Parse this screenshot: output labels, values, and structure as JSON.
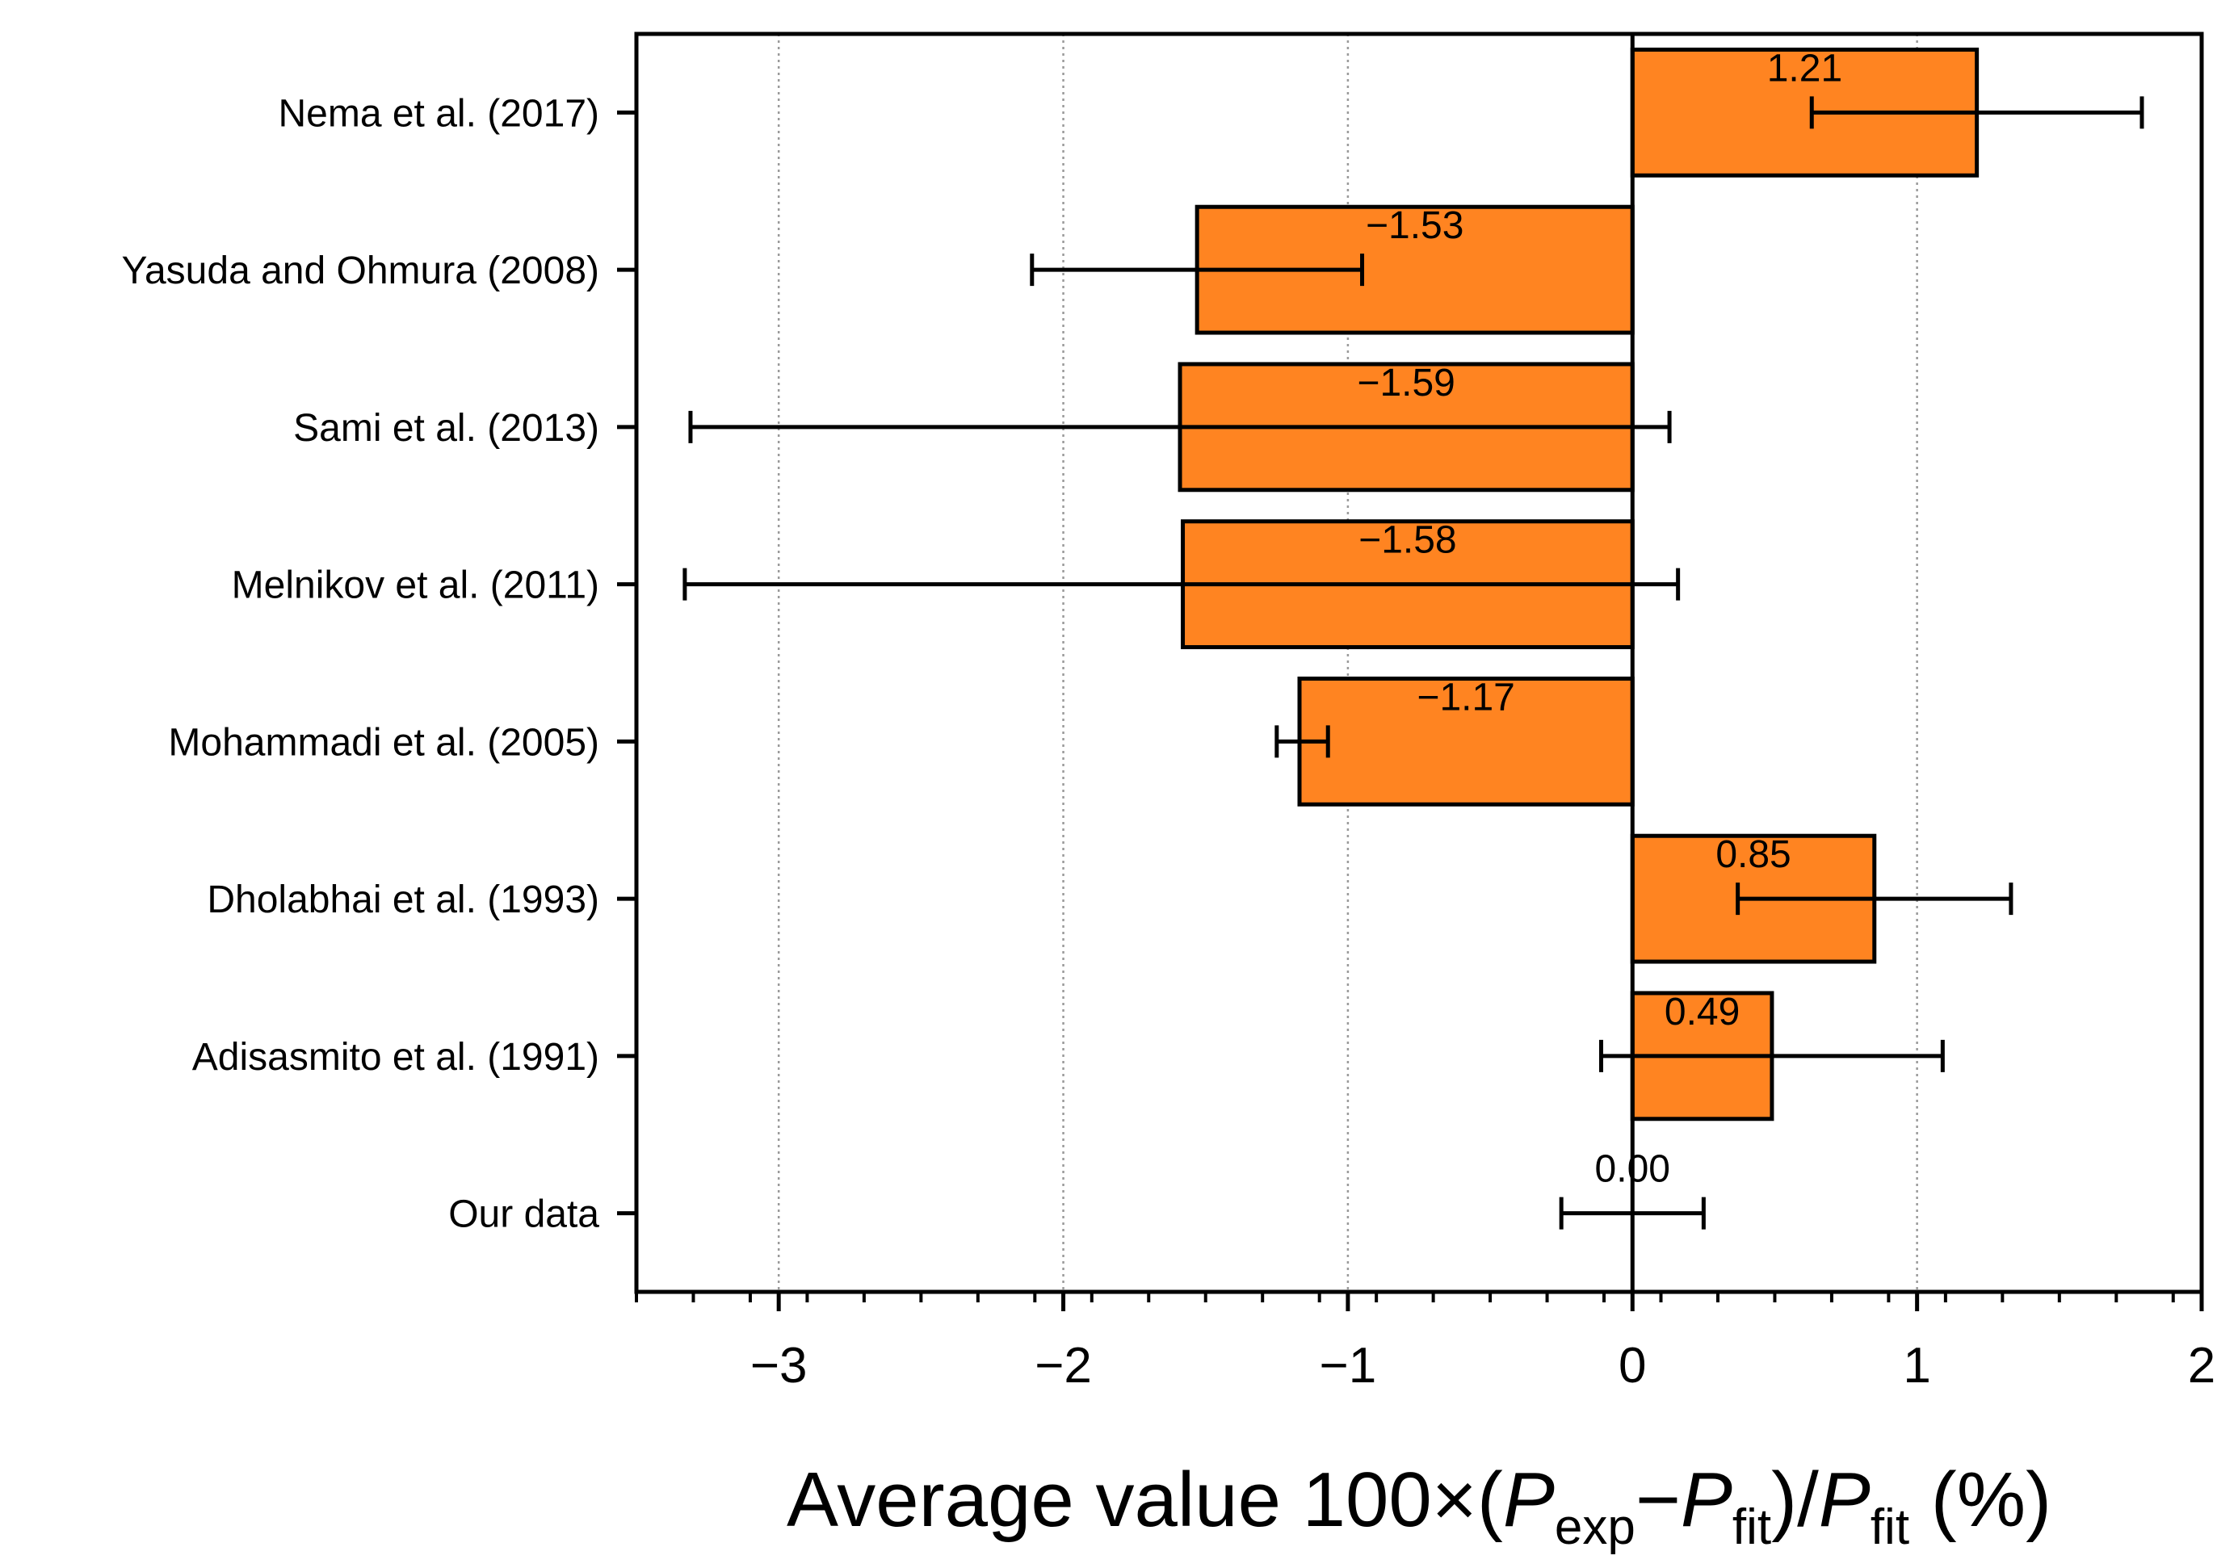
{
  "chart_data": {
    "type": "bar",
    "orientation": "horizontal",
    "categories": [
      "Nema et al. (2017)",
      "Yasuda and Ohmura (2008)",
      "Sami et al. (2013)",
      "Melnikov et al. (2011)",
      "Mohammadi et al. (2005)",
      "Dholabhai et al. (1993)",
      "Adisasmito et al. (1991)",
      "Our data"
    ],
    "values": [
      1.21,
      -1.53,
      -1.59,
      -1.58,
      -1.17,
      0.85,
      0.49,
      0.0
    ],
    "value_labels": [
      "1.21",
      "−1.53",
      "−1.59",
      "−1.58",
      "−1.17",
      "0.85",
      "0.49",
      "0.00"
    ],
    "error_low": [
      0.63,
      -2.11,
      -3.31,
      -3.33,
      -1.25,
      0.37,
      -0.11,
      -0.25
    ],
    "error_high": [
      1.79,
      -0.95,
      0.13,
      0.16,
      -1.07,
      1.33,
      1.09,
      0.25
    ],
    "xlim": [
      -3.5,
      2
    ],
    "xticks": [
      -3,
      -2,
      -1,
      0,
      1,
      2
    ],
    "xtick_labels": [
      "−3",
      "−2",
      "−1",
      "0",
      "1",
      "2"
    ],
    "xlabel": {
      "text1": "Average value 100×(",
      "p1": "P",
      "sub1": "exp",
      "minus": "−",
      "p2": "P",
      "sub2": "fit",
      "mid": ")/",
      "p3": "P",
      "sub3": "fit",
      "end": " (%)"
    },
    "grid": "vertical dotted",
    "colors": {
      "bar": "#FF8421",
      "edge": "#000000",
      "grid": "#9a9a9a"
    }
  }
}
